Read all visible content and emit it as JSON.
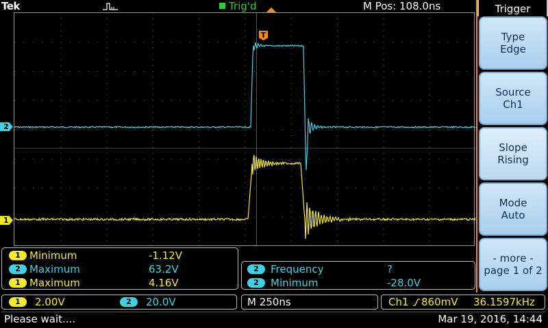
{
  "header": {
    "brand": "Tek",
    "acquisition_icon": "pulse-acquire-icon",
    "trigger_status": "Trig'd",
    "horizontal_position": "M Pos: 108.0ns"
  },
  "channels": {
    "ch1": {
      "number": "1",
      "color": "#f4ec2a"
    },
    "ch2": {
      "number": "2",
      "color": "#3ed3e3"
    }
  },
  "trigger_marker": "T",
  "measurements_left": [
    {
      "channel": "1",
      "name": "Minimum",
      "value": "-1.12V"
    },
    {
      "channel": "2",
      "name": "Maximum",
      "value": "63.2V"
    },
    {
      "channel": "1",
      "name": "Maximum",
      "value": "4.16V"
    }
  ],
  "measurements_right": [
    {
      "channel": "2",
      "name": "Frequency",
      "value": "?"
    },
    {
      "channel": "2",
      "name": "Minimum",
      "value": "-28.0V"
    }
  ],
  "settings": {
    "ch1_scale": "2.00V",
    "ch2_scale": "20.0V",
    "timebase": "M 250ns",
    "trigger_source": "Ch1",
    "trigger_slope_icon": "rising-edge-icon",
    "trigger_level": "860mV",
    "trigger_frequency": "36.1597kHz"
  },
  "status": {
    "message": "Please wait....",
    "datetime": "Mar 19, 2016, 14:44"
  },
  "side_menu": {
    "title": "Trigger",
    "buttons": [
      {
        "line1": "Type",
        "line2": "Edge"
      },
      {
        "line1": "Source",
        "line2": "Ch1"
      },
      {
        "line1": "Slope",
        "line2": "Rising"
      },
      {
        "line1": "Mode",
        "line2": "Auto"
      },
      {
        "line1": "- more -",
        "line2": "page 1 of 2"
      }
    ]
  },
  "colors": {
    "ch1": "#f4ec2a",
    "ch2": "#3ed3e3",
    "trigger": "#f58a1f",
    "trig_status": "#2ecc40"
  }
}
